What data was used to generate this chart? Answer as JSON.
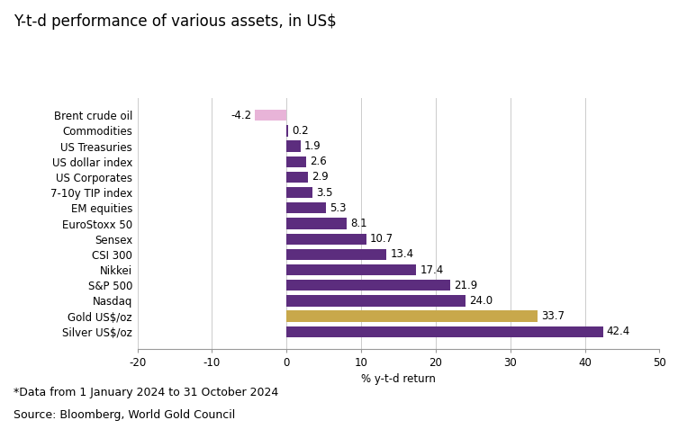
{
  "title": "Y-t-d performance of various assets, in US$",
  "categories": [
    "Silver US$/oz",
    "Gold US$/oz",
    "Nasdaq",
    "S&P 500",
    "Nikkei",
    "CSI 300",
    "Sensex",
    "EuroStoxx 50",
    "EM equities",
    "7-10y TIP index",
    "US Corporates",
    "US dollar index",
    "US Treasuries",
    "Commodities",
    "Brent crude oil"
  ],
  "values": [
    42.4,
    33.7,
    24.0,
    21.9,
    17.4,
    13.4,
    10.7,
    8.1,
    5.3,
    3.5,
    2.9,
    2.6,
    1.9,
    0.2,
    -4.2
  ],
  "colors": [
    "#5c2d7e",
    "#c8a84b",
    "#5c2d7e",
    "#5c2d7e",
    "#5c2d7e",
    "#5c2d7e",
    "#5c2d7e",
    "#5c2d7e",
    "#5c2d7e",
    "#5c2d7e",
    "#5c2d7e",
    "#5c2d7e",
    "#5c2d7e",
    "#5c2d7e",
    "#e8b4d8"
  ],
  "xlabel": "% y-t-d return",
  "xlim": [
    -20,
    50
  ],
  "xticks": [
    -20,
    -10,
    0,
    10,
    20,
    30,
    40,
    50
  ],
  "footnote1": "*Data from 1 January 2024 to 31 October 2024",
  "footnote2": "Source: Bloomberg, World Gold Council",
  "bg_color": "#ffffff",
  "plot_bg_color": "#ffffff",
  "bar_height": 0.72,
  "title_fontsize": 12,
  "label_fontsize": 8.5,
  "tick_fontsize": 8.5,
  "footnote_fontsize": 9
}
